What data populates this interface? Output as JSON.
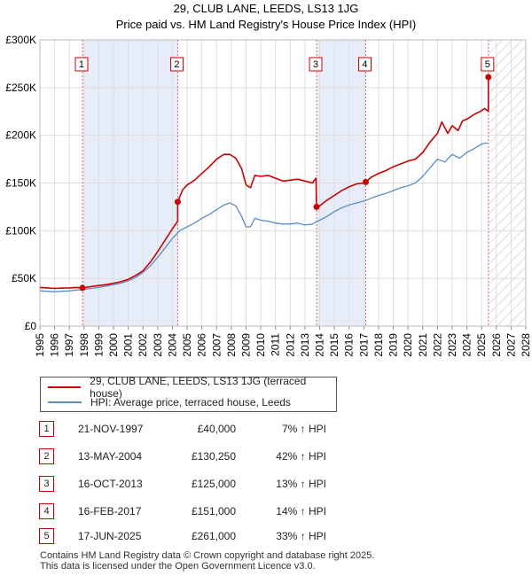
{
  "chart_data": {
    "type": "line",
    "title": "29, CLUB LANE, LEEDS, LS13 1JG",
    "subtitle": "Price paid vs. HM Land Registry's House Price Index (HPI)",
    "xlabel": "",
    "ylabel": "",
    "xlim": [
      1995,
      2028
    ],
    "ylim": [
      0,
      300000
    ],
    "x_ticks": [
      1995,
      1996,
      1997,
      1998,
      1999,
      2000,
      2001,
      2002,
      2003,
      2004,
      2005,
      2006,
      2007,
      2008,
      2009,
      2010,
      2011,
      2012,
      2013,
      2014,
      2015,
      2016,
      2017,
      2018,
      2019,
      2020,
      2021,
      2022,
      2023,
      2024,
      2025,
      2026,
      2027,
      2028
    ],
    "y_ticks": [
      {
        "value": 0,
        "label": "£0"
      },
      {
        "value": 50000,
        "label": "£50K"
      },
      {
        "value": 100000,
        "label": "£100K"
      },
      {
        "value": 150000,
        "label": "£150K"
      },
      {
        "value": 200000,
        "label": "£200K"
      },
      {
        "value": 250000,
        "label": "£250K"
      },
      {
        "value": 300000,
        "label": "£300K"
      }
    ],
    "grid": true,
    "forecast_from": 2025.5,
    "shaded_periods": [
      [
        1997.9,
        2004.4
      ],
      [
        2013.8,
        2017.1
      ]
    ],
    "series": [
      {
        "name": "29, CLUB LANE, LEEDS, LS13 1JG (terraced house)",
        "color": "#cc0000",
        "x": [
          1995.0,
          1995.5,
          1996.0,
          1996.5,
          1997.0,
          1997.5,
          1997.89,
          1998.5,
          1999.0,
          1999.5,
          2000.0,
          2000.5,
          2001.0,
          2001.5,
          2002.0,
          2002.5,
          2003.0,
          2003.5,
          2004.0,
          2004.36,
          2004.36,
          2004.7,
          2005.0,
          2005.5,
          2006.0,
          2006.5,
          2007.0,
          2007.5,
          2007.9,
          2008.3,
          2008.7,
          2009.0,
          2009.3,
          2009.6,
          2010.0,
          2010.5,
          2011.0,
          2011.5,
          2012.0,
          2012.5,
          2013.0,
          2013.5,
          2013.75,
          2013.79,
          2014.0,
          2014.5,
          2015.0,
          2015.5,
          2016.0,
          2016.5,
          2017.0,
          2017.13,
          2017.5,
          2018.0,
          2018.5,
          2019.0,
          2019.5,
          2020.0,
          2020.5,
          2021.0,
          2021.5,
          2022.0,
          2022.3,
          2022.7,
          2023.0,
          2023.4,
          2023.7,
          2024.0,
          2024.5,
          2024.9,
          2025.2,
          2025.46,
          2025.46,
          2025.5
        ],
        "y": [
          40500,
          40000,
          39500,
          39800,
          40000,
          40500,
          40000,
          41500,
          42500,
          43500,
          45000,
          46500,
          49000,
          53000,
          58000,
          67000,
          78000,
          90000,
          102000,
          110000,
          130250,
          143000,
          148000,
          153000,
          160000,
          167000,
          175000,
          180000,
          180000,
          176000,
          165000,
          148000,
          145000,
          158000,
          157000,
          158000,
          155000,
          152000,
          153000,
          154000,
          152000,
          150000,
          155000,
          125000,
          126000,
          132000,
          137000,
          142000,
          146000,
          149000,
          150000,
          151000,
          156000,
          160000,
          163000,
          167000,
          170000,
          173000,
          175000,
          182000,
          193000,
          202000,
          214000,
          202000,
          210000,
          205000,
          215000,
          217000,
          222000,
          225000,
          228000,
          225000,
          261000,
          262000
        ]
      },
      {
        "name": "HPI: Average price, terraced house, Leeds",
        "color": "#5b8cc6",
        "x": [
          1995.0,
          1995.5,
          1996.0,
          1996.5,
          1997.0,
          1997.5,
          1998.0,
          1998.5,
          1999.0,
          1999.5,
          2000.0,
          2000.5,
          2001.0,
          2001.5,
          2002.0,
          2002.5,
          2003.0,
          2003.5,
          2004.0,
          2004.5,
          2005.0,
          2005.5,
          2006.0,
          2006.5,
          2007.0,
          2007.5,
          2007.9,
          2008.3,
          2008.7,
          2009.0,
          2009.3,
          2009.6,
          2010.0,
          2010.5,
          2011.0,
          2011.5,
          2012.0,
          2012.5,
          2013.0,
          2013.5,
          2014.0,
          2014.5,
          2015.0,
          2015.5,
          2016.0,
          2016.5,
          2017.0,
          2017.5,
          2018.0,
          2018.5,
          2019.0,
          2019.5,
          2020.0,
          2020.5,
          2021.0,
          2021.5,
          2022.0,
          2022.5,
          2023.0,
          2023.5,
          2024.0,
          2024.5,
          2025.0,
          2025.4
        ],
        "y": [
          37000,
          36500,
          36000,
          36500,
          37000,
          37800,
          38500,
          39500,
          40500,
          42000,
          43500,
          45000,
          47500,
          51000,
          56000,
          63000,
          72000,
          82000,
          92000,
          100000,
          104000,
          108000,
          113000,
          117000,
          122000,
          127000,
          129000,
          126000,
          115000,
          104000,
          104000,
          113000,
          111000,
          110000,
          108000,
          107000,
          107000,
          108000,
          106000,
          107000,
          111000,
          115000,
          120000,
          124000,
          127000,
          129000,
          131000,
          134000,
          137000,
          139000,
          142000,
          145000,
          147000,
          150000,
          157000,
          166000,
          175000,
          172000,
          180000,
          176000,
          182000,
          186000,
          191000,
          192000
        ]
      }
    ],
    "sale_markers": [
      {
        "n": "1",
        "x": 1997.89,
        "y": 40000
      },
      {
        "n": "2",
        "x": 2004.36,
        "y": 130250
      },
      {
        "n": "3",
        "x": 2013.79,
        "y": 125000
      },
      {
        "n": "4",
        "x": 2017.13,
        "y": 151000
      },
      {
        "n": "5",
        "x": 2025.46,
        "y": 261000
      }
    ]
  },
  "legend": [
    {
      "label": "29, CLUB LANE, LEEDS, LS13 1JG (terraced house)",
      "color": "#cc0000"
    },
    {
      "label": "HPI: Average price, terraced house, Leeds",
      "color": "#5b8cc6"
    }
  ],
  "sales": [
    {
      "n": "1",
      "date": "21-NOV-1997",
      "price": "£40,000",
      "hpi": "7% ↑ HPI"
    },
    {
      "n": "2",
      "date": "13-MAY-2004",
      "price": "£130,250",
      "hpi": "42% ↑ HPI"
    },
    {
      "n": "3",
      "date": "16-OCT-2013",
      "price": "£125,000",
      "hpi": "13% ↑ HPI"
    },
    {
      "n": "4",
      "date": "16-FEB-2017",
      "price": "£151,000",
      "hpi": "14% ↑ HPI"
    },
    {
      "n": "5",
      "date": "17-JUN-2025",
      "price": "£261,000",
      "hpi": "33% ↑ HPI"
    }
  ],
  "footer": {
    "line1": "Contains HM Land Registry data © Crown copyright and database right 2025.",
    "line2": "This data is licensed under the Open Government Licence v3.0."
  }
}
